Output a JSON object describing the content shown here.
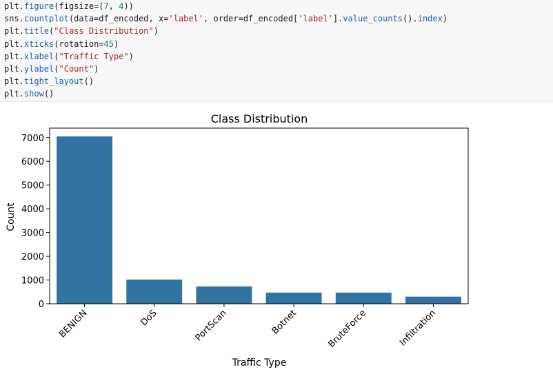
{
  "code_cell": {
    "lines": [
      [
        {
          "t": "plt.",
          "c": "plain"
        },
        {
          "t": "figure",
          "c": "fn"
        },
        {
          "t": "(figsize=(",
          "c": "plain"
        },
        {
          "t": "7",
          "c": "num"
        },
        {
          "t": ", ",
          "c": "plain"
        },
        {
          "t": "4",
          "c": "num"
        },
        {
          "t": "))",
          "c": "plain"
        }
      ],
      [
        {
          "t": "sns.",
          "c": "plain"
        },
        {
          "t": "countplot",
          "c": "fn"
        },
        {
          "t": "(data=df_encoded, x=",
          "c": "plain"
        },
        {
          "t": "'label'",
          "c": "str"
        },
        {
          "t": ", order=df_encoded[",
          "c": "plain"
        },
        {
          "t": "'label'",
          "c": "str"
        },
        {
          "t": "].",
          "c": "plain"
        },
        {
          "t": "value_counts",
          "c": "fn"
        },
        {
          "t": "().",
          "c": "plain"
        },
        {
          "t": "index",
          "c": "fn"
        },
        {
          "t": ")",
          "c": "plain"
        }
      ],
      [
        {
          "t": "plt.",
          "c": "plain"
        },
        {
          "t": "title",
          "c": "fn"
        },
        {
          "t": "(",
          "c": "plain"
        },
        {
          "t": "\"Class Distribution\"",
          "c": "str"
        },
        {
          "t": ")",
          "c": "plain"
        }
      ],
      [
        {
          "t": "plt.",
          "c": "plain"
        },
        {
          "t": "xticks",
          "c": "fn"
        },
        {
          "t": "(rotation=",
          "c": "plain"
        },
        {
          "t": "45",
          "c": "num"
        },
        {
          "t": ")",
          "c": "plain"
        }
      ],
      [
        {
          "t": "plt.",
          "c": "plain"
        },
        {
          "t": "xlabel",
          "c": "fn"
        },
        {
          "t": "(",
          "c": "plain"
        },
        {
          "t": "\"Traffic Type\"",
          "c": "str"
        },
        {
          "t": ")",
          "c": "plain"
        }
      ],
      [
        {
          "t": "plt.",
          "c": "plain"
        },
        {
          "t": "ylabel",
          "c": "fn"
        },
        {
          "t": "(",
          "c": "plain"
        },
        {
          "t": "\"Count\"",
          "c": "str"
        },
        {
          "t": ")",
          "c": "plain"
        }
      ],
      [
        {
          "t": "plt.",
          "c": "plain"
        },
        {
          "t": "tight_layout",
          "c": "fn"
        },
        {
          "t": "()",
          "c": "plain"
        }
      ],
      [
        {
          "t": "plt.",
          "c": "plain"
        },
        {
          "t": "show",
          "c": "fn"
        },
        {
          "t": "()",
          "c": "plain"
        }
      ]
    ]
  },
  "colors": {
    "bar": "#3274a1",
    "code_bg": "#f7f7f7",
    "fn": "#1a5fb4",
    "str": "#b22222",
    "num": "#098658"
  },
  "chart_data": {
    "type": "bar",
    "title": "Class Distribution",
    "xlabel": "Traffic Type",
    "ylabel": "Count",
    "categories": [
      "BENIGN",
      "DoS",
      "PortScan",
      "Botnet",
      "BruteForce",
      "Infiltration"
    ],
    "values": [
      7050,
      1020,
      730,
      470,
      470,
      300
    ],
    "ylim": [
      0,
      7400
    ],
    "yticks": [
      0,
      1000,
      2000,
      3000,
      4000,
      5000,
      6000,
      7000
    ],
    "xtick_rotation": 45,
    "grid": false,
    "legend": "none"
  }
}
